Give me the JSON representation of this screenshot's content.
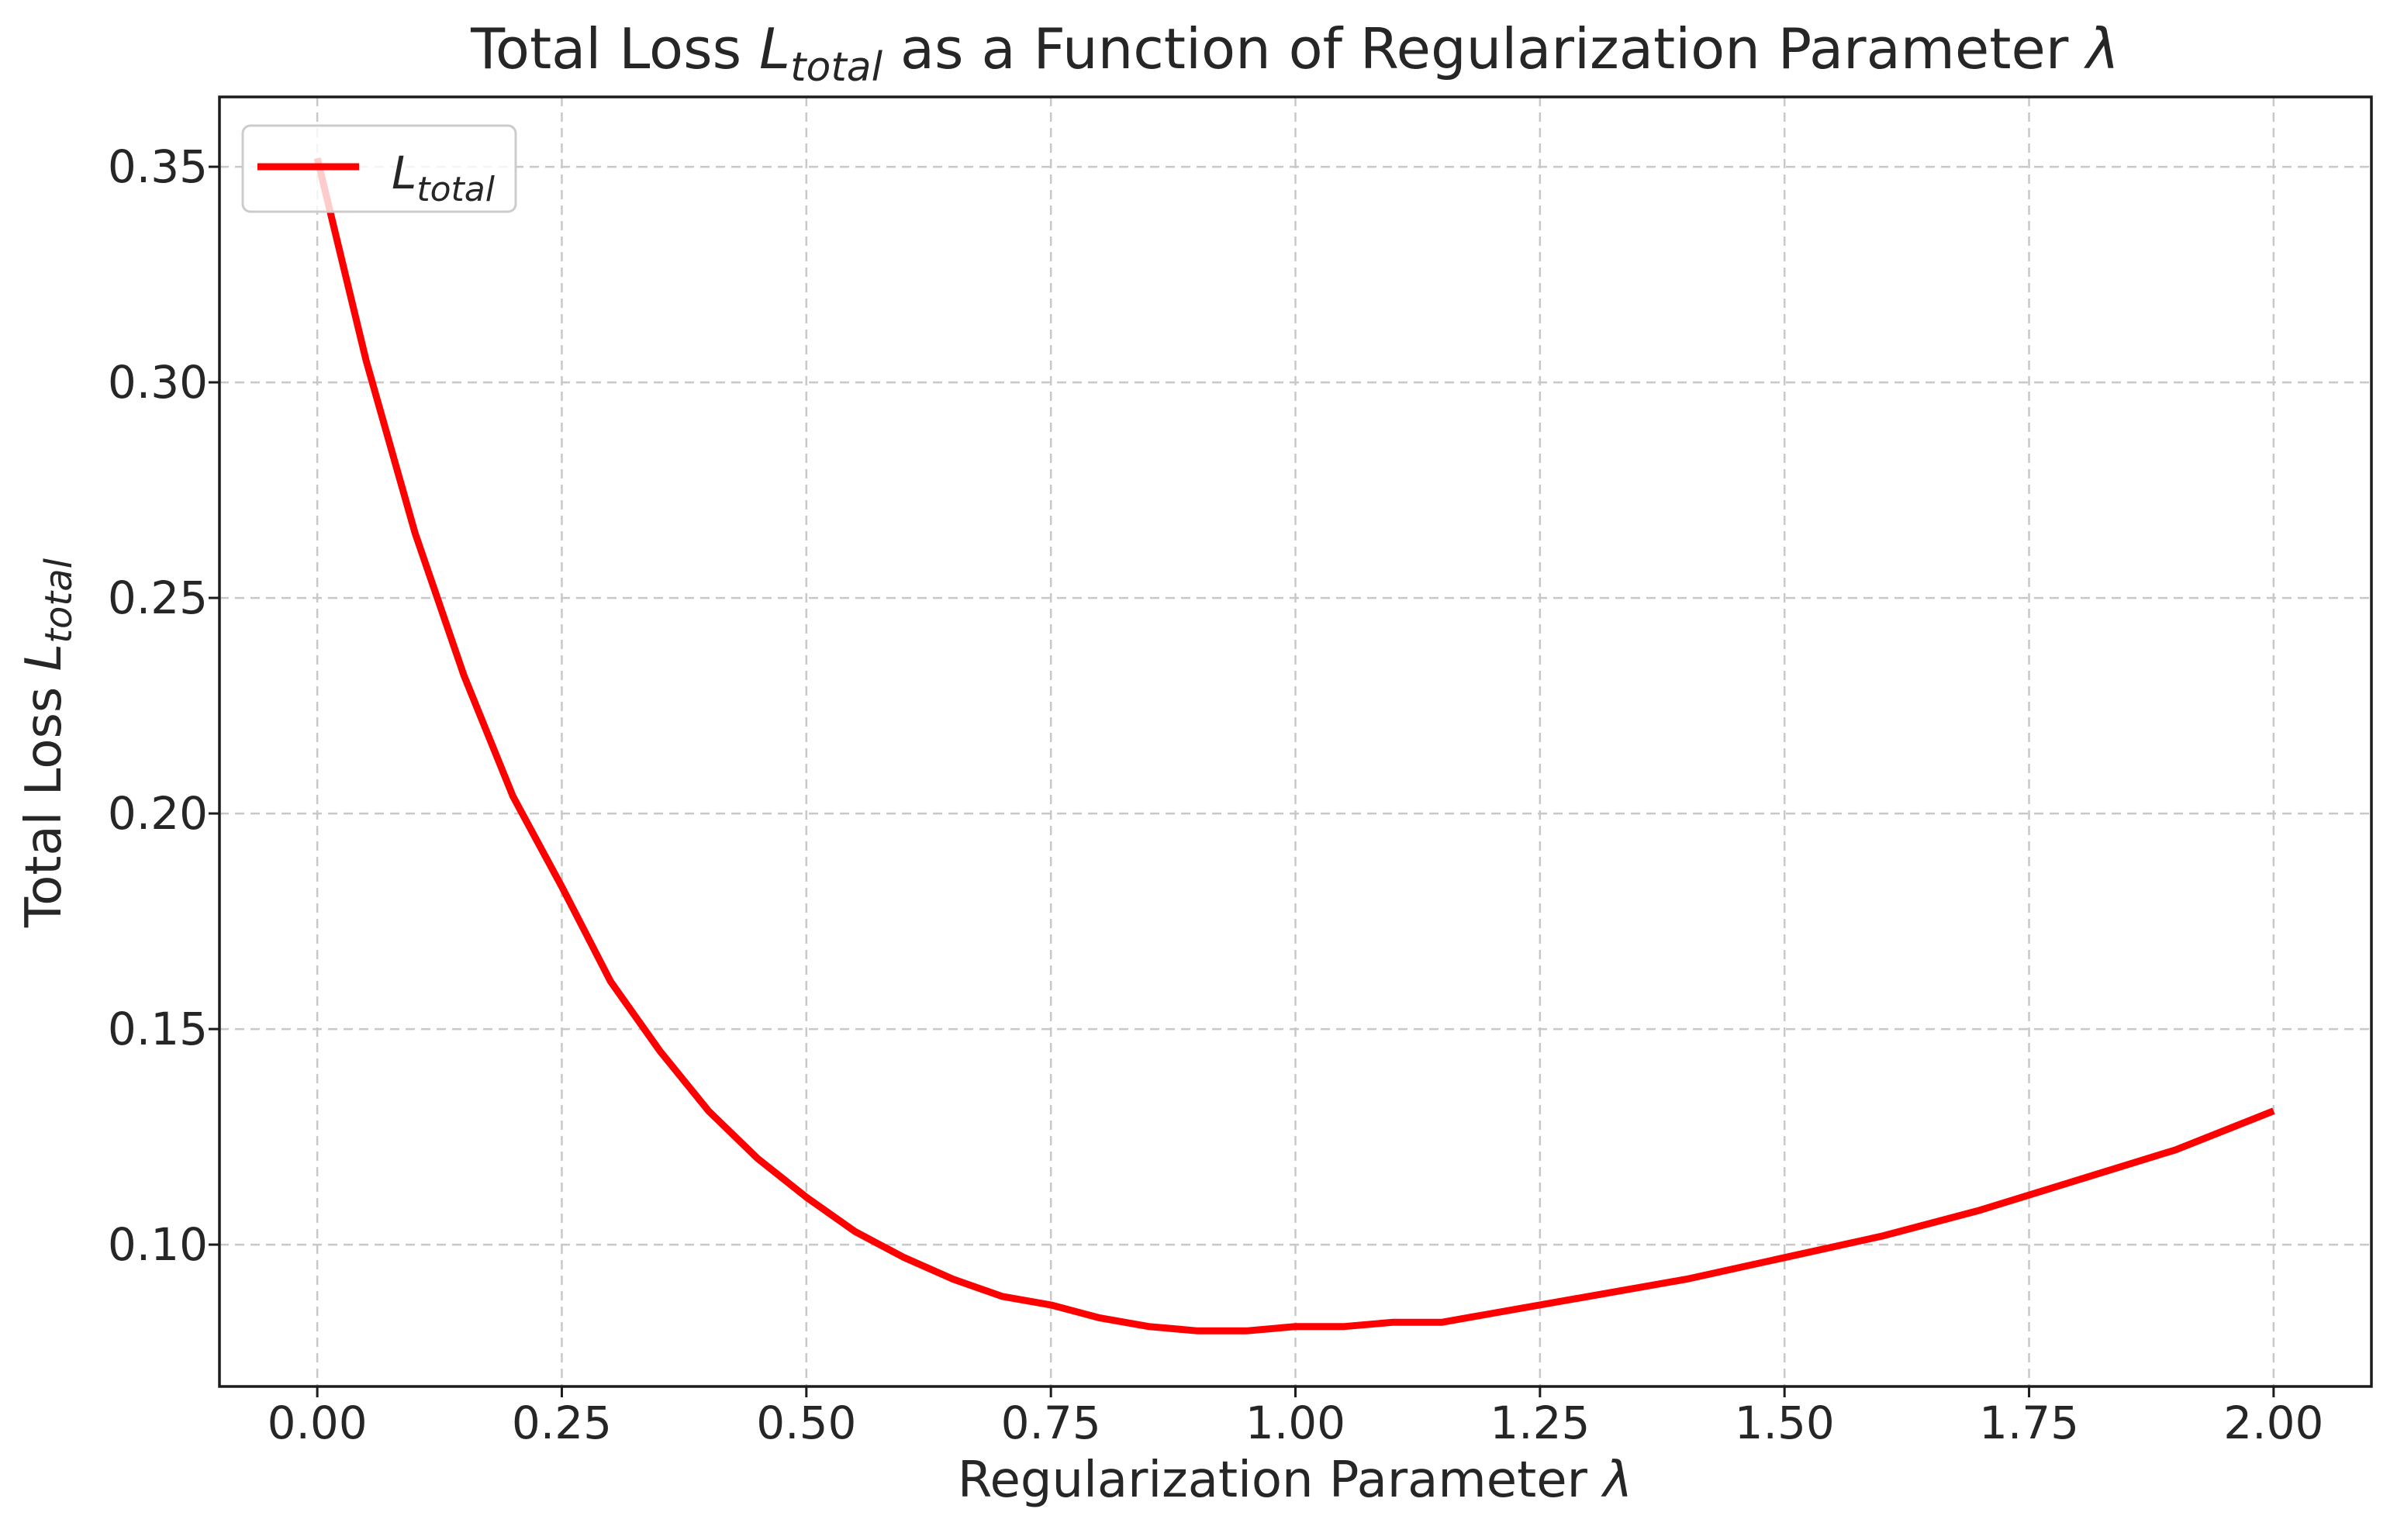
{
  "figure": {
    "title": {
      "prefix": "Total Loss ",
      "math_main": "L",
      "math_sub": "total",
      "mid": " as a Function of Regularization Parameter ",
      "symbol": "λ"
    },
    "x_axis": {
      "label_prefix": "Regularization Parameter ",
      "label_symbol": "λ"
    },
    "y_axis": {
      "label_prefix": "Total Loss ",
      "label_math_main": "L",
      "label_math_sub": "total"
    },
    "legend": {
      "item_main": "L",
      "item_sub": "total"
    }
  },
  "chart_data": {
    "type": "line",
    "title": "Total Loss L_total as a Function of Regularization Parameter λ",
    "xlabel": "Regularization Parameter λ",
    "ylabel": "Total Loss L_total",
    "xlim": [
      -0.1,
      2.1
    ],
    "ylim": [
      0.0671,
      0.3662
    ],
    "grid": true,
    "grid_style": "dashed",
    "legend_position": "upper left",
    "x_ticks": {
      "values": [
        0.0,
        0.25,
        0.5,
        0.75,
        1.0,
        1.25,
        1.5,
        1.75,
        2.0
      ],
      "labels": [
        "0.00",
        "0.25",
        "0.50",
        "0.75",
        "1.00",
        "1.25",
        "1.50",
        "1.75",
        "2.00"
      ]
    },
    "y_ticks": {
      "values": [
        0.1,
        0.15,
        0.2,
        0.25,
        0.3,
        0.35
      ],
      "labels": [
        "0.10",
        "0.15",
        "0.20",
        "0.25",
        "0.30",
        "0.35"
      ]
    },
    "series": [
      {
        "name": "L_total",
        "color": "#ff0000",
        "linewidth": 9,
        "x": [
          0.0,
          0.05,
          0.1,
          0.15,
          0.2,
          0.25,
          0.3,
          0.35,
          0.4,
          0.45,
          0.5,
          0.55,
          0.6,
          0.65,
          0.7,
          0.75,
          0.8,
          0.85,
          0.9,
          0.95,
          1.0,
          1.05,
          1.1,
          1.15,
          1.2,
          1.3,
          1.4,
          1.5,
          1.6,
          1.7,
          1.8,
          1.9,
          2.0
        ],
        "y": [
          0.352,
          0.305,
          0.265,
          0.232,
          0.204,
          0.183,
          0.161,
          0.145,
          0.131,
          0.12,
          0.111,
          0.103,
          0.097,
          0.092,
          0.088,
          0.086,
          0.083,
          0.081,
          0.08,
          0.08,
          0.081,
          0.081,
          0.082,
          0.082,
          0.084,
          0.088,
          0.092,
          0.097,
          0.102,
          0.108,
          0.115,
          0.122,
          0.131
        ]
      }
    ]
  }
}
